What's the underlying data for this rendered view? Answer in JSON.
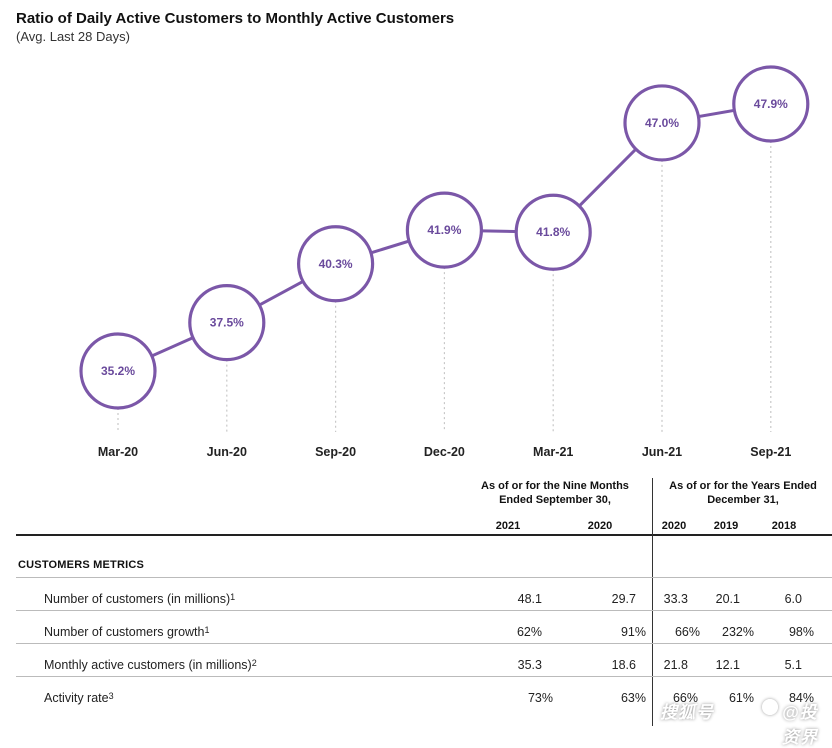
{
  "chart_data": {
    "type": "line",
    "title": "Ratio of Daily Active Customers to Monthly Active Customers",
    "subtitle": "(Avg. Last 28 Days)",
    "categories": [
      "Mar-20",
      "Jun-20",
      "Sep-20",
      "Dec-20",
      "Mar-21",
      "Jun-21",
      "Sep-21"
    ],
    "values": [
      35.2,
      37.5,
      40.3,
      41.9,
      41.8,
      47.0,
      47.9
    ],
    "data_labels": [
      "35.2%",
      "37.5%",
      "40.3%",
      "41.9%",
      "41.8%",
      "47.0%",
      "47.9%"
    ],
    "unit": "%",
    "colors": {
      "accent": "#7b57a8",
      "label": "#6a4a9c"
    }
  },
  "table": {
    "group_nine_months": "As of or for the Nine Months Ended September 30,",
    "group_years": "As of or for the Years Ended December 31,",
    "columns": [
      "2021",
      "2020",
      "2020",
      "2019",
      "2018"
    ],
    "section_title": "CUSTOMERS METRICS",
    "rows": [
      {
        "label": "Number of customers (in millions)",
        "note": "1",
        "values": [
          "48.1",
          "29.7",
          "33.3",
          "20.1",
          "6.0"
        ]
      },
      {
        "label": "Number of customers growth",
        "note": "1",
        "values": [
          "62%",
          "91%",
          "66%",
          "232%",
          "98%"
        ]
      },
      {
        "label": "Monthly active customers (in millions)",
        "note": "2",
        "values": [
          "35.3",
          "18.6",
          "21.8",
          "12.1",
          "5.1"
        ]
      },
      {
        "label": "Activity rate",
        "note": "3",
        "values": [
          "73%",
          "63%",
          "66%",
          "61%",
          "84%"
        ]
      }
    ]
  },
  "watermark": {
    "text": "搜狐号",
    "handle": "@投资界"
  }
}
